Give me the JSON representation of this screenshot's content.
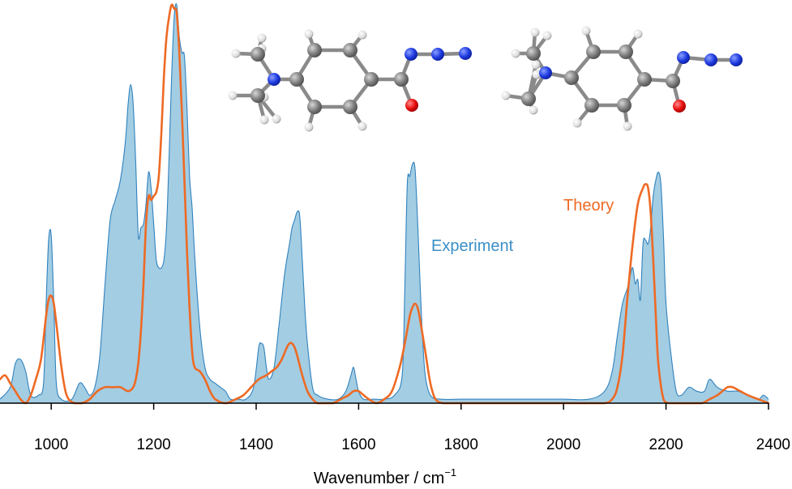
{
  "chart_data": {
    "type": "area",
    "title": "",
    "xlabel": "Wavenumber / cm",
    "xlabel_superscript": "−1",
    "ylabel": "",
    "xlim": [
      900,
      2400
    ],
    "ylim": [
      0,
      1
    ],
    "xticks": [
      1000,
      1200,
      1400,
      1600,
      1800,
      2000,
      2200,
      2400
    ],
    "grid": false,
    "legend": "inline labels",
    "series": [
      {
        "name": "Experiment",
        "style": "filled area",
        "fill_color": "#9ecae1",
        "line_color": "#3182bd",
        "label_color": "#3a8fc6",
        "x": [
          900,
          920,
          930,
          940,
          950,
          960,
          975,
          985,
          990,
          995,
          1000,
          1005,
          1010,
          1020,
          1040,
          1055,
          1065,
          1075,
          1085,
          1095,
          1105,
          1115,
          1125,
          1135,
          1145,
          1150,
          1155,
          1160,
          1165,
          1170,
          1175,
          1180,
          1185,
          1190,
          1195,
          1200,
          1205,
          1210,
          1215,
          1220,
          1225,
          1230,
          1235,
          1240,
          1245,
          1250,
          1255,
          1260,
          1265,
          1270,
          1275,
          1280,
          1290,
          1300,
          1310,
          1320,
          1330,
          1340,
          1350,
          1365,
          1380,
          1395,
          1405,
          1410,
          1415,
          1420,
          1425,
          1435,
          1445,
          1455,
          1465,
          1470,
          1475,
          1480,
          1485,
          1490,
          1495,
          1500,
          1510,
          1520,
          1540,
          1560,
          1575,
          1585,
          1590,
          1595,
          1600,
          1610,
          1630,
          1650,
          1670,
          1685,
          1690,
          1695,
          1700,
          1705,
          1710,
          1715,
          1720,
          1725,
          1730,
          1740,
          1760,
          1800,
          1850,
          1900,
          1950,
          2000,
          2050,
          2080,
          2095,
          2105,
          2115,
          2125,
          2130,
          2135,
          2140,
          2145,
          2150,
          2155,
          2160,
          2165,
          2170,
          2175,
          2180,
          2185,
          2190,
          2195,
          2200,
          2210,
          2220,
          2230,
          2245,
          2260,
          2275,
          2285,
          2300,
          2320,
          2340,
          2360,
          2380,
          2390,
          2400
        ],
        "y": [
          0.01,
          0.04,
          0.1,
          0.11,
          0.08,
          0.02,
          0.02,
          0.05,
          0.25,
          0.41,
          0.42,
          0.25,
          0.05,
          0.01,
          0.01,
          0.05,
          0.04,
          0.02,
          0.04,
          0.12,
          0.3,
          0.46,
          0.51,
          0.56,
          0.66,
          0.75,
          0.8,
          0.75,
          0.6,
          0.42,
          0.44,
          0.45,
          0.5,
          0.58,
          0.54,
          0.45,
          0.36,
          0.34,
          0.34,
          0.36,
          0.44,
          0.62,
          0.82,
          0.97,
          1.0,
          0.92,
          0.88,
          0.87,
          0.74,
          0.57,
          0.49,
          0.37,
          0.19,
          0.09,
          0.06,
          0.05,
          0.04,
          0.03,
          0.01,
          0.01,
          0.01,
          0.04,
          0.14,
          0.15,
          0.14,
          0.09,
          0.06,
          0.09,
          0.2,
          0.32,
          0.4,
          0.44,
          0.46,
          0.48,
          0.47,
          0.36,
          0.24,
          0.15,
          0.04,
          0.02,
          0.01,
          0.01,
          0.03,
          0.07,
          0.09,
          0.06,
          0.03,
          0.01,
          0.01,
          0.01,
          0.02,
          0.07,
          0.28,
          0.55,
          0.57,
          0.6,
          0.59,
          0.46,
          0.3,
          0.16,
          0.07,
          0.02,
          0.01,
          0.01,
          0.01,
          0.01,
          0.01,
          0.01,
          0.01,
          0.03,
          0.08,
          0.17,
          0.25,
          0.29,
          0.32,
          0.34,
          0.3,
          0.31,
          0.26,
          0.4,
          0.41,
          0.4,
          0.44,
          0.52,
          0.56,
          0.58,
          0.55,
          0.42,
          0.25,
          0.12,
          0.03,
          0.02,
          0.04,
          0.03,
          0.03,
          0.06,
          0.04,
          0.03,
          0.03,
          0.02,
          0.01,
          0.02,
          0.01
        ]
      },
      {
        "name": "Theory",
        "style": "line",
        "line_color": "#ee6a24",
        "label_color": "#ee6a24",
        "x": [
          900,
          910,
          920,
          930,
          940,
          950,
          960,
          970,
          980,
          990,
          995,
          1000,
          1005,
          1010,
          1020,
          1030,
          1045,
          1060,
          1075,
          1090,
          1105,
          1120,
          1135,
          1150,
          1160,
          1165,
          1170,
          1175,
          1180,
          1185,
          1190,
          1195,
          1200,
          1205,
          1210,
          1215,
          1220,
          1225,
          1230,
          1235,
          1240,
          1245,
          1250,
          1255,
          1260,
          1265,
          1270,
          1275,
          1280,
          1290,
          1300,
          1310,
          1320,
          1340,
          1360,
          1375,
          1390,
          1405,
          1420,
          1430,
          1440,
          1450,
          1460,
          1465,
          1470,
          1475,
          1480,
          1490,
          1500,
          1510,
          1520,
          1535,
          1550,
          1565,
          1580,
          1590,
          1600,
          1610,
          1620,
          1635,
          1650,
          1665,
          1680,
          1690,
          1700,
          1705,
          1710,
          1715,
          1720,
          1730,
          1740,
          1750,
          1765,
          1780,
          1800,
          1850,
          1900,
          1950,
          2000,
          2050,
          2080,
          2095,
          2105,
          2115,
          2125,
          2135,
          2145,
          2155,
          2160,
          2165,
          2170,
          2175,
          2180,
          2185,
          2195,
          2205,
          2215,
          2230,
          2250,
          2270,
          2285,
          2300,
          2310,
          2320,
          2330,
          2345,
          2360,
          2380,
          2400
        ],
        "y": [
          0.06,
          0.07,
          0.05,
          0.03,
          0.01,
          0.0,
          0.02,
          0.06,
          0.11,
          0.22,
          0.26,
          0.27,
          0.25,
          0.2,
          0.09,
          0.02,
          0.0,
          0.0,
          0.01,
          0.03,
          0.04,
          0.04,
          0.04,
          0.03,
          0.04,
          0.06,
          0.1,
          0.18,
          0.3,
          0.45,
          0.52,
          0.51,
          0.52,
          0.53,
          0.57,
          0.68,
          0.82,
          0.92,
          0.97,
          1.0,
          0.99,
          0.98,
          0.88,
          0.73,
          0.56,
          0.38,
          0.24,
          0.13,
          0.09,
          0.08,
          0.06,
          0.03,
          0.01,
          0.0,
          0.01,
          0.02,
          0.04,
          0.06,
          0.07,
          0.08,
          0.09,
          0.11,
          0.14,
          0.15,
          0.15,
          0.14,
          0.12,
          0.07,
          0.03,
          0.01,
          0.0,
          0.0,
          0.0,
          0.01,
          0.02,
          0.03,
          0.03,
          0.02,
          0.01,
          0.0,
          0.01,
          0.03,
          0.09,
          0.15,
          0.22,
          0.24,
          0.25,
          0.24,
          0.21,
          0.13,
          0.05,
          0.01,
          0.0,
          0.0,
          0.0,
          0.0,
          0.0,
          0.0,
          0.0,
          0.0,
          0.0,
          0.01,
          0.04,
          0.12,
          0.27,
          0.4,
          0.5,
          0.54,
          0.55,
          0.54,
          0.48,
          0.36,
          0.22,
          0.1,
          0.01,
          0.0,
          0.0,
          0.0,
          0.0,
          0.0,
          0.01,
          0.02,
          0.03,
          0.04,
          0.04,
          0.03,
          0.02,
          0.01,
          0.0
        ]
      }
    ]
  },
  "colors": {
    "experiment_fill": "#9ecae1",
    "experiment_line": "#3182bd",
    "theory": "#ee6a24",
    "axis": "#000000"
  },
  "insets": [
    {
      "name": "molecule-left",
      "atoms": [
        "H",
        "H",
        "H",
        "H",
        "H",
        "H",
        "H",
        "H",
        "H",
        "H",
        "C",
        "C",
        "C",
        "C",
        "C",
        "C",
        "C",
        "C",
        "C",
        "N",
        "O",
        "N",
        "N",
        "N"
      ]
    },
    {
      "name": "molecule-right",
      "atoms": [
        "H",
        "H",
        "H",
        "H",
        "H",
        "H",
        "H",
        "H",
        "H",
        "H",
        "C",
        "C",
        "C",
        "C",
        "C",
        "C",
        "C",
        "C",
        "C",
        "N",
        "O",
        "N",
        "N",
        "N"
      ]
    }
  ]
}
